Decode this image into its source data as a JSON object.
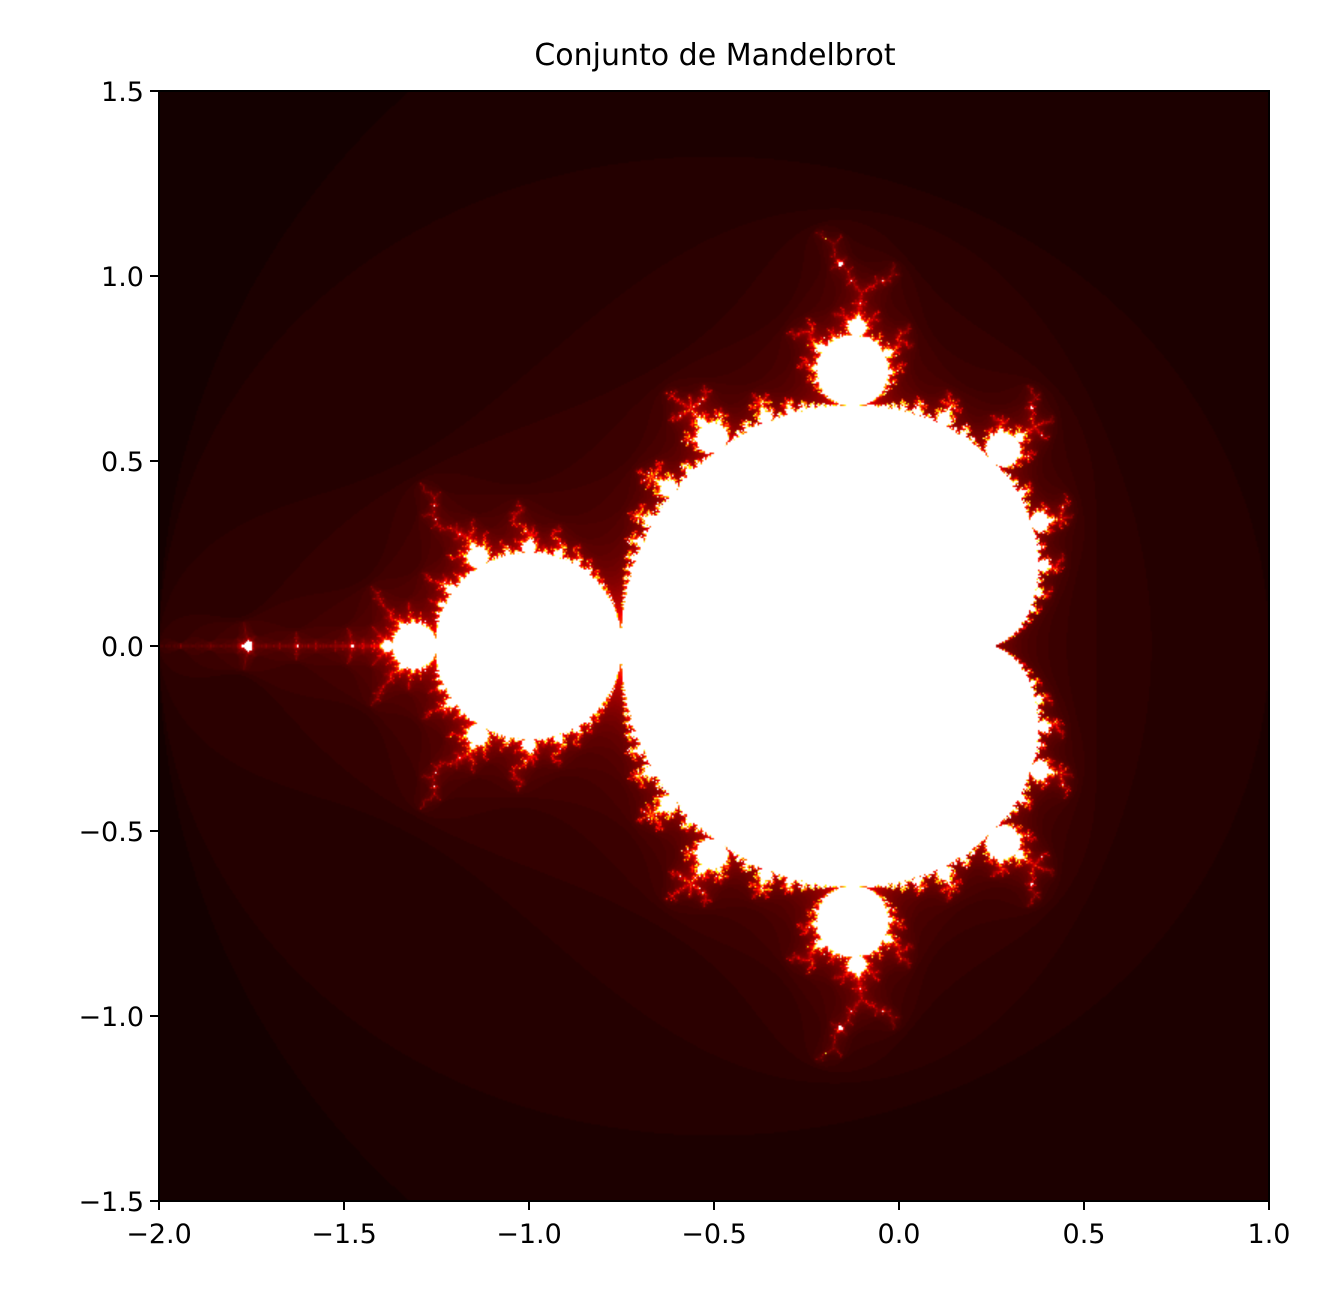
{
  "chart_data": {
    "type": "heatmap",
    "title": "Conjunto de Mandelbrot",
    "xlabel": "",
    "ylabel": "",
    "xlim": [
      -2.0,
      1.0
    ],
    "ylim": [
      -1.5,
      1.5
    ],
    "x_ticks": [
      -2.0,
      -1.5,
      -1.0,
      -0.5,
      0.0,
      0.5,
      1.0
    ],
    "x_tick_labels": [
      "−2.0",
      "−1.5",
      "−1.0",
      "−0.5",
      "0.0",
      "0.5",
      "1.0"
    ],
    "y_ticks": [
      1.5,
      1.0,
      0.5,
      0.0,
      -0.5,
      -1.0,
      -1.5
    ],
    "y_tick_labels": [
      "1.5",
      "1.0",
      "0.5",
      "0.0",
      "−0.5",
      "−1.0",
      "−1.5"
    ],
    "colormap": "hot",
    "colors": {
      "outside": "#0b0000",
      "set": "#ffffff"
    },
    "grid": false,
    "legend": "none"
  }
}
